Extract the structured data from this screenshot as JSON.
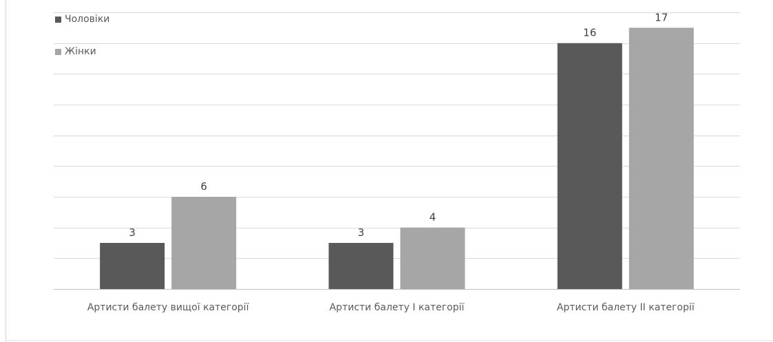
{
  "chart_data": {
    "type": "bar",
    "title": "",
    "xlabel": "",
    "ylabel": "",
    "categories": [
      "Артисти балету вищої категорії",
      "Артисти балету І категорії",
      "Артисти балету ІІ категорії"
    ],
    "series": [
      {
        "name": "Чоловіки",
        "values": [
          3,
          3,
          16
        ],
        "color": "#595959"
      },
      {
        "name": "Жінки",
        "values": [
          6,
          4,
          17
        ],
        "color": "#a6a6a6"
      }
    ],
    "ylim": [
      0,
      18
    ],
    "grid_step": 2,
    "grid": true,
    "legend_position": "top-left"
  }
}
